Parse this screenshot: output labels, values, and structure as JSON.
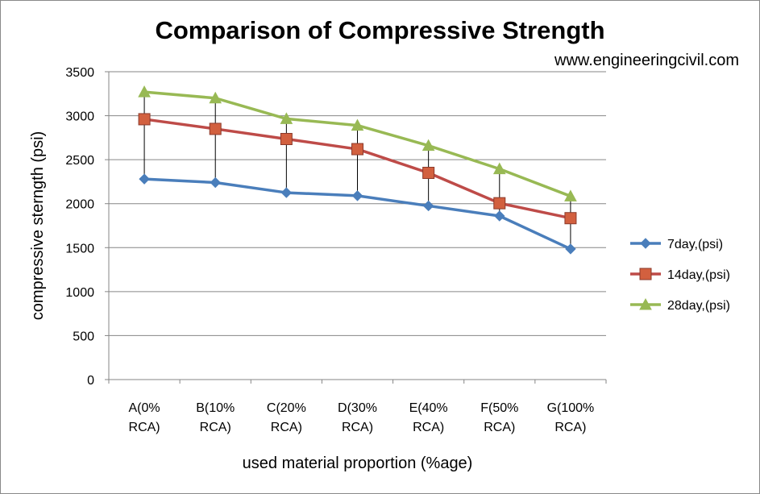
{
  "watermark": "www.engineeringcivil.com",
  "chart_data": {
    "type": "line",
    "title": "Comparison of Compressive Strength",
    "xlabel": "used material proportion (%age)",
    "ylabel": "compressive sterngth (psi)",
    "ylim": [
      0,
      3500
    ],
    "yticks": [
      0,
      500,
      1000,
      1500,
      2000,
      2500,
      3000,
      3500
    ],
    "grid": true,
    "legend_position": "right",
    "categories": [
      [
        "A(0%",
        "RCA)"
      ],
      [
        "B(10%",
        "RCA)"
      ],
      [
        "C(20%",
        "RCA)"
      ],
      [
        "D(30%",
        "RCA)"
      ],
      [
        "E(40%",
        "RCA)"
      ],
      [
        "F(50%",
        "RCA)"
      ],
      [
        "G(100%",
        "RCA)"
      ]
    ],
    "series": [
      {
        "name": "7day,(psi)",
        "color": "#4a7ebb",
        "marker": "diamond",
        "values": [
          2280,
          2240,
          2125,
          2090,
          1975,
          1860,
          1485
        ]
      },
      {
        "name": "14day,(psi)",
        "color": "#be4b48",
        "marker": "square",
        "values": [
          2960,
          2850,
          2735,
          2620,
          2350,
          2005,
          1835
        ]
      },
      {
        "name": "28day,(psi)",
        "color": "#98b954",
        "marker": "triangle",
        "values": [
          3270,
          3200,
          2965,
          2890,
          2660,
          2395,
          2085
        ]
      }
    ],
    "high_low_lines": true
  }
}
